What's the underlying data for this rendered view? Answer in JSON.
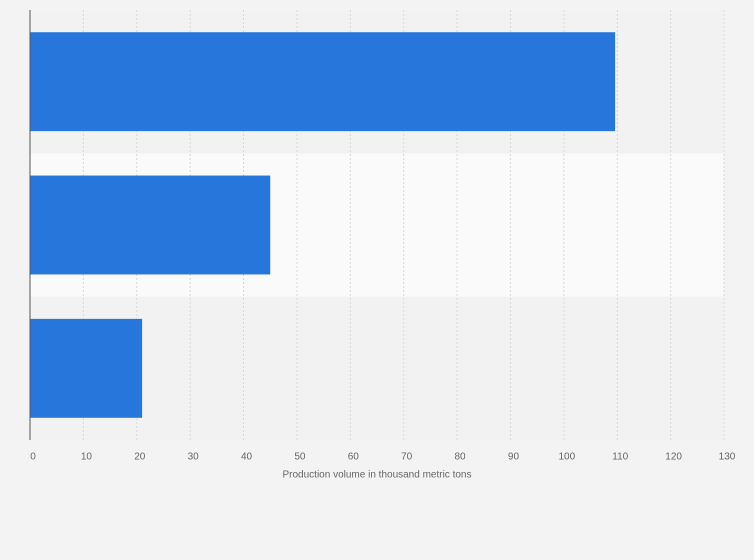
{
  "chart_data": {
    "type": "bar",
    "orientation": "horizontal",
    "x_label": "Production volume in thousand metric tons",
    "categories": [
      null,
      null,
      null
    ],
    "values": [
      109.6,
      45,
      21
    ],
    "color": "#2776dc",
    "xlim": [
      0,
      130
    ],
    "xticks": [
      0,
      10,
      20,
      30,
      40,
      50,
      60,
      70,
      80,
      90,
      100,
      110,
      120,
      130
    ],
    "grid": true
  }
}
